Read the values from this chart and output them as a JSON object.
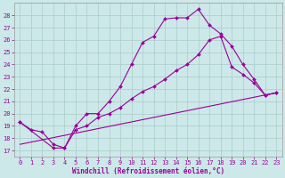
{
  "background_color": "#cce8e8",
  "grid_color": "#aacccc",
  "line_color": "#990099",
  "xlabel": "Windchill (Refroidissement éolien,°C)",
  "xlim": [
    -0.5,
    23.5
  ],
  "ylim": [
    16.5,
    29.0
  ],
  "yticks": [
    17,
    18,
    19,
    20,
    21,
    22,
    23,
    24,
    25,
    26,
    27,
    28
  ],
  "xticks": [
    0,
    1,
    2,
    3,
    4,
    5,
    6,
    7,
    8,
    9,
    10,
    11,
    12,
    13,
    14,
    15,
    16,
    17,
    18,
    19,
    20,
    21,
    22,
    23
  ],
  "line1_x": [
    0,
    1,
    2,
    3,
    4,
    5,
    6,
    7,
    8,
    9,
    10,
    11,
    12,
    13,
    14,
    15,
    16,
    17,
    18,
    19,
    20,
    21,
    22,
    23
  ],
  "line1_y": [
    19.3,
    18.7,
    18.5,
    17.5,
    17.2,
    19.0,
    20.0,
    20.0,
    21.0,
    22.2,
    24.0,
    25.8,
    26.3,
    27.7,
    27.8,
    27.8,
    28.5,
    27.2,
    26.5,
    25.5,
    24.0,
    22.8,
    21.5,
    21.7
  ],
  "line2_x": [
    0,
    3,
    4,
    5,
    6,
    7,
    8,
    9,
    10,
    11,
    12,
    13,
    14,
    15,
    16,
    17,
    18,
    19,
    20,
    21,
    22,
    23
  ],
  "line2_y": [
    19.3,
    17.2,
    17.2,
    18.7,
    19.0,
    19.7,
    20.0,
    20.5,
    21.2,
    21.8,
    22.2,
    22.8,
    23.5,
    24.0,
    24.8,
    26.0,
    26.3,
    23.8,
    23.2,
    22.5,
    21.5,
    21.7
  ],
  "line3_x": [
    0,
    23
  ],
  "line3_y": [
    17.5,
    21.7
  ]
}
